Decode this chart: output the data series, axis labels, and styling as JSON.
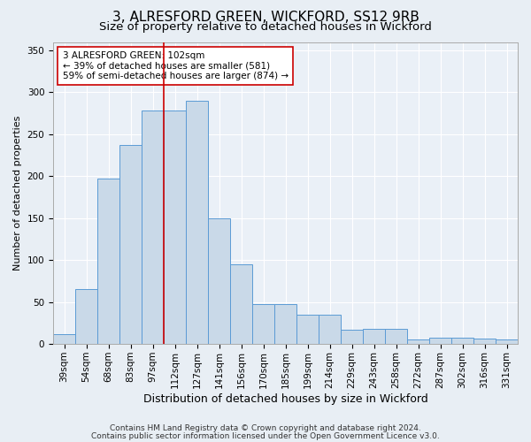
{
  "title1": "3, ALRESFORD GREEN, WICKFORD, SS12 9RB",
  "title2": "Size of property relative to detached houses in Wickford",
  "xlabel": "Distribution of detached houses by size in Wickford",
  "ylabel": "Number of detached properties",
  "bar_labels": [
    "39sqm",
    "54sqm",
    "68sqm",
    "83sqm",
    "97sqm",
    "112sqm",
    "127sqm",
    "141sqm",
    "156sqm",
    "170sqm",
    "185sqm",
    "199sqm",
    "214sqm",
    "229sqm",
    "243sqm",
    "258sqm",
    "272sqm",
    "287sqm",
    "302sqm",
    "316sqm",
    "331sqm"
  ],
  "bar_values": [
    12,
    65,
    197,
    237,
    278,
    278,
    290,
    150,
    95,
    48,
    48,
    35,
    35,
    17,
    18,
    18,
    5,
    8,
    8,
    6,
    5
  ],
  "bar_color": "#c9d9e8",
  "bar_edge_color": "#5b9bd5",
  "vline_x": 4.5,
  "vline_color": "#cc0000",
  "annotation_line1": "3 ALRESFORD GREEN: 102sqm",
  "annotation_line2": "← 39% of detached houses are smaller (581)",
  "annotation_line3": "59% of semi-detached houses are larger (874) →",
  "annotation_box_color": "#ffffff",
  "annotation_box_edge": "#cc0000",
  "ylim": [
    0,
    360
  ],
  "yticks": [
    0,
    50,
    100,
    150,
    200,
    250,
    300,
    350
  ],
  "bg_color": "#e8eef4",
  "plot_bg_color": "#eaf0f7",
  "footer1": "Contains HM Land Registry data © Crown copyright and database right 2024.",
  "footer2": "Contains public sector information licensed under the Open Government Licence v3.0.",
  "title1_fontsize": 11,
  "title2_fontsize": 9.5,
  "xlabel_fontsize": 9,
  "ylabel_fontsize": 8,
  "tick_fontsize": 7.5,
  "annotation_fontsize": 7.5,
  "footer_fontsize": 6.5,
  "grid_color": "#ffffff",
  "spine_color": "#aaaaaa"
}
